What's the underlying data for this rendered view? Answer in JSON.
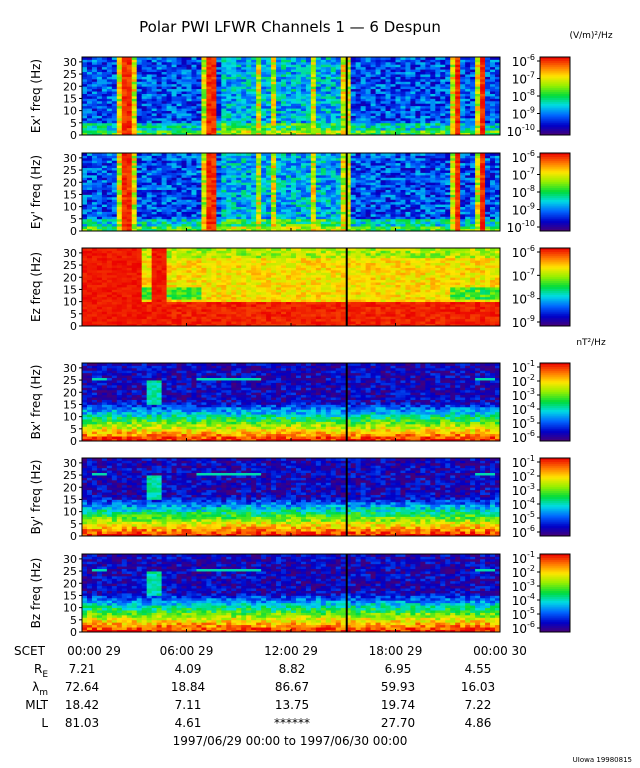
{
  "chart_data": {
    "type": "heatmap",
    "title": "Polar PWI LFWR Channels 1 — 6 Despun",
    "units": {
      "electric": "(V/m)²/Hz",
      "magnetic": "nT²/Hz"
    },
    "x_tick_labels": [
      "00:00 29",
      "06:00 29",
      "12:00 29",
      "18:00 29",
      "00:00 30"
    ],
    "x_range_hours": [
      0,
      24
    ],
    "y_range_hz": [
      0,
      32
    ],
    "y_ticks": [
      0,
      5,
      10,
      15,
      20,
      25,
      30
    ],
    "panels": [
      {
        "id": "ex",
        "ylabel": "Ex' freq (Hz)",
        "cbar_exponents": [
          "-6",
          "-7",
          "-8",
          "-9",
          "-10"
        ]
      },
      {
        "id": "ey",
        "ylabel": "Ey' freq (Hz)",
        "cbar_exponents": [
          "-6",
          "-7",
          "-8",
          "-9",
          "-10"
        ]
      },
      {
        "id": "ez",
        "ylabel": "Ez freq (Hz)",
        "cbar_exponents": [
          "-6",
          "-7",
          "-8",
          "-9"
        ]
      },
      {
        "id": "bx",
        "ylabel": "Bx' freq (Hz)",
        "cbar_exponents": [
          "-1",
          "-2",
          "-3",
          "-4",
          "-5",
          "-6"
        ]
      },
      {
        "id": "by",
        "ylabel": "By' freq (Hz)",
        "cbar_exponents": [
          "-1",
          "-2",
          "-3",
          "-4",
          "-5",
          "-6"
        ]
      },
      {
        "id": "bz",
        "ylabel": "Bz freq (Hz)",
        "cbar_exponents": [
          "-1",
          "-2",
          "-3",
          "-4",
          "-5",
          "-6"
        ]
      }
    ],
    "cbar_base": "10",
    "ephemeris": {
      "scet_label": "SCET",
      "rows": [
        {
          "label": "R",
          "sub": "E",
          "values": [
            "7.21",
            "4.09",
            "8.82",
            "6.95",
            "4.55"
          ]
        },
        {
          "label": "λ",
          "sub": "m",
          "values": [
            "72.64",
            "18.84",
            "86.67",
            "59.93",
            "16.03"
          ]
        },
        {
          "label": "MLT",
          "sub": "",
          "values": [
            "18.42",
            "7.11",
            "13.75",
            "19.74",
            "7.22"
          ]
        },
        {
          "label": "L",
          "sub": "",
          "values": [
            "81.03",
            "4.61",
            "******",
            "27.70",
            "4.86"
          ]
        }
      ]
    },
    "date_range": "1997/06/29 00:00 to 1997/06/30 00:00",
    "footer_credit": "UIowa 19980815"
  }
}
